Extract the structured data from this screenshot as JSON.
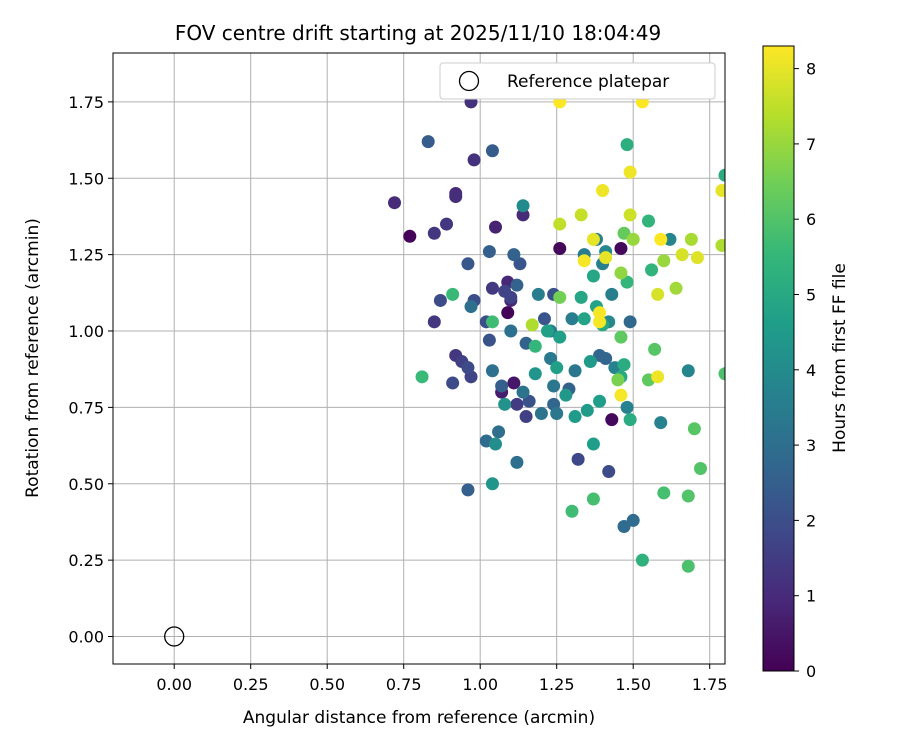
{
  "chart_data": {
    "type": "scatter",
    "title": "FOV centre drift starting at 2025/11/10 18:04:49",
    "xlabel": "Angular distance from reference (arcmin)",
    "ylabel": "Rotation from reference (arcmin)",
    "xlim": [
      -0.2,
      1.8
    ],
    "ylim": [
      -0.09,
      1.91
    ],
    "xticks": [
      0.0,
      0.25,
      0.5,
      0.75,
      1.0,
      1.25,
      1.5,
      1.75
    ],
    "yticks": [
      0.0,
      0.25,
      0.5,
      0.75,
      1.0,
      1.25,
      1.5,
      1.75
    ],
    "xtick_labels": [
      "0.00",
      "0.25",
      "0.50",
      "0.75",
      "1.00",
      "1.25",
      "1.50",
      "1.75"
    ],
    "ytick_labels": [
      "0.00",
      "0.25",
      "0.50",
      "0.75",
      "1.00",
      "1.25",
      "1.50",
      "1.75"
    ],
    "grid": true,
    "legend": {
      "position": "top-right",
      "entries": [
        {
          "label": "Reference platepar",
          "marker": "open-circle"
        }
      ]
    },
    "reference_point": {
      "x": 0.0,
      "y": 0.0
    },
    "colorbar": {
      "label": "Hours from first FF file",
      "colormap": "viridis",
      "range": [
        0,
        8.3
      ],
      "ticks": [
        0,
        1,
        2,
        3,
        4,
        5,
        6,
        7,
        8
      ],
      "tick_labels": [
        "0",
        "1",
        "2",
        "3",
        "4",
        "5",
        "6",
        "7",
        "8"
      ]
    },
    "colormap_stops": [
      "#440154",
      "#482878",
      "#3e4989",
      "#31688e",
      "#26828e",
      "#1f9e89",
      "#35b779",
      "#6ece58",
      "#b5de2b",
      "#fde725"
    ],
    "points": [
      [
        0.77,
        1.31,
        0.1
      ],
      [
        1.09,
        1.06,
        0.1
      ],
      [
        1.26,
        1.27,
        0.2
      ],
      [
        1.46,
        1.27,
        0.2
      ],
      [
        1.43,
        0.71,
        0.2
      ],
      [
        1.11,
        0.83,
        0.5
      ],
      [
        1.07,
        0.8,
        0.6
      ],
      [
        1.05,
        1.34,
        0.8
      ],
      [
        1.1,
        1.1,
        0.9
      ],
      [
        1.09,
        1.16,
        0.9
      ],
      [
        1.14,
        1.38,
        1.0
      ],
      [
        0.72,
        1.42,
        1.0
      ],
      [
        0.92,
        1.45,
        1.0
      ],
      [
        0.92,
        1.44,
        1.1
      ],
      [
        0.97,
        1.75,
        1.2
      ],
      [
        0.98,
        1.56,
        1.2
      ],
      [
        0.85,
        1.32,
        1.3
      ],
      [
        0.89,
        1.35,
        1.3
      ],
      [
        0.85,
        1.03,
        1.3
      ],
      [
        0.92,
        0.92,
        1.3
      ],
      [
        1.04,
        1.14,
        1.4
      ],
      [
        1.12,
        0.76,
        1.5
      ],
      [
        1.15,
        0.72,
        1.6
      ],
      [
        0.94,
        0.9,
        1.6
      ],
      [
        0.97,
        0.85,
        1.7
      ],
      [
        1.08,
        1.13,
        1.7
      ],
      [
        1.1,
        1.11,
        1.7
      ],
      [
        1.32,
        0.58,
        1.8
      ],
      [
        1.42,
        0.54,
        1.9
      ],
      [
        0.87,
        1.1,
        1.9
      ],
      [
        0.91,
        0.83,
        1.9
      ],
      [
        0.96,
        0.88,
        1.9
      ],
      [
        0.98,
        1.1,
        2.0
      ],
      [
        1.02,
        1.03,
        2.0
      ],
      [
        1.03,
        0.97,
        2.1
      ],
      [
        1.16,
        0.77,
        2.1
      ],
      [
        1.24,
        1.12,
        2.1
      ],
      [
        1.21,
        1.04,
        2.2
      ],
      [
        1.13,
        1.22,
        2.2
      ],
      [
        0.96,
        1.22,
        2.3
      ],
      [
        0.83,
        1.62,
        2.4
      ],
      [
        1.04,
        1.59,
        2.4
      ],
      [
        0.96,
        0.48,
        2.5
      ],
      [
        1.03,
        1.26,
        2.5
      ],
      [
        1.07,
        0.82,
        2.5
      ],
      [
        1.11,
        1.25,
        2.6
      ],
      [
        1.12,
        1.15,
        2.6
      ],
      [
        1.15,
        0.96,
        2.6
      ],
      [
        1.29,
        0.81,
        2.6
      ],
      [
        1.24,
        0.76,
        2.7
      ],
      [
        1.39,
        0.92,
        2.7
      ],
      [
        1.41,
        0.91,
        2.7
      ],
      [
        1.49,
        1.03,
        2.8
      ],
      [
        1.5,
        0.38,
        2.9
      ],
      [
        1.47,
        0.36,
        2.9
      ],
      [
        1.02,
        0.64,
        2.9
      ],
      [
        1.06,
        0.67,
        3.0
      ],
      [
        1.12,
        0.57,
        3.0
      ],
      [
        0.97,
        1.08,
        3.0
      ],
      [
        1.04,
        0.87,
        3.1
      ],
      [
        1.1,
        1.0,
        3.1
      ],
      [
        1.14,
        0.8,
        3.2
      ],
      [
        1.2,
        0.73,
        3.2
      ],
      [
        1.25,
        0.73,
        3.3
      ],
      [
        1.24,
        0.82,
        3.3
      ],
      [
        1.31,
        0.87,
        3.3
      ],
      [
        1.23,
        0.91,
        3.4
      ],
      [
        1.23,
        1.0,
        3.4
      ],
      [
        1.19,
        1.12,
        3.5
      ],
      [
        1.3,
        1.04,
        3.5
      ],
      [
        1.34,
        1.25,
        3.5
      ],
      [
        1.38,
        1.3,
        3.6
      ],
      [
        1.4,
        1.22,
        3.6
      ],
      [
        1.43,
        1.12,
        3.6
      ],
      [
        1.44,
        0.88,
        3.7
      ],
      [
        1.48,
        0.75,
        3.7
      ],
      [
        1.59,
        0.7,
        3.7
      ],
      [
        1.62,
        1.3,
        3.8
      ],
      [
        1.68,
        0.87,
        3.8
      ],
      [
        1.42,
        1.03,
        3.9
      ],
      [
        1.41,
        1.26,
        3.9
      ],
      [
        1.14,
        1.41,
        4.0
      ],
      [
        1.05,
        0.63,
        4.1
      ],
      [
        1.08,
        0.76,
        4.2
      ],
      [
        1.04,
        0.5,
        4.3
      ],
      [
        1.18,
        0.86,
        4.3
      ],
      [
        1.28,
        0.79,
        4.4
      ],
      [
        1.31,
        0.72,
        4.5
      ],
      [
        1.35,
        0.74,
        4.5
      ],
      [
        1.36,
        0.9,
        4.5
      ],
      [
        1.37,
        0.63,
        4.6
      ],
      [
        1.39,
        0.77,
        4.6
      ],
      [
        1.25,
        0.88,
        4.7
      ],
      [
        1.26,
        0.98,
        4.7
      ],
      [
        1.22,
        1.0,
        4.7
      ],
      [
        1.34,
        1.04,
        4.8
      ],
      [
        1.38,
        1.08,
        4.8
      ],
      [
        1.37,
        1.18,
        4.9
      ],
      [
        1.33,
        1.11,
        4.9
      ],
      [
        1.4,
        1.02,
        5.0
      ],
      [
        1.46,
        0.85,
        5.0
      ],
      [
        1.47,
        0.89,
        5.1
      ],
      [
        1.49,
        0.71,
        5.1
      ],
      [
        1.48,
        1.61,
        5.2
      ],
      [
        1.53,
        0.25,
        5.3
      ],
      [
        1.55,
        1.36,
        5.4
      ],
      [
        1.56,
        1.2,
        5.4
      ],
      [
        1.48,
        1.16,
        5.5
      ],
      [
        1.18,
        0.95,
        5.5
      ],
      [
        0.91,
        1.12,
        5.6
      ],
      [
        0.81,
        0.85,
        5.6
      ],
      [
        1.04,
        1.03,
        5.7
      ],
      [
        1.3,
        0.41,
        5.7
      ],
      [
        1.37,
        0.45,
        5.8
      ],
      [
        1.6,
        0.47,
        5.8
      ],
      [
        1.68,
        0.23,
        5.9
      ],
      [
        1.68,
        0.46,
        6.0
      ],
      [
        1.72,
        0.55,
        6.0
      ],
      [
        1.7,
        0.68,
        6.1
      ],
      [
        1.57,
        0.94,
        6.1
      ],
      [
        1.55,
        0.84,
        6.2
      ],
      [
        1.46,
        0.98,
        6.2
      ],
      [
        1.47,
        1.32,
        6.3
      ],
      [
        1.26,
        1.11,
        6.5
      ],
      [
        1.45,
        0.84,
        6.6
      ],
      [
        1.46,
        1.19,
        6.9
      ],
      [
        1.5,
        1.3,
        7.0
      ],
      [
        1.6,
        1.23,
        7.0
      ],
      [
        1.64,
        1.14,
        7.1
      ],
      [
        1.69,
        1.3,
        7.2
      ],
      [
        1.79,
        1.28,
        7.3
      ],
      [
        1.17,
        1.02,
        7.3
      ],
      [
        1.26,
        1.35,
        7.5
      ],
      [
        1.33,
        1.38,
        7.6
      ],
      [
        1.49,
        1.38,
        7.7
      ],
      [
        1.66,
        1.25,
        7.8
      ],
      [
        1.58,
        1.12,
        7.8
      ],
      [
        1.71,
        1.24,
        7.9
      ],
      [
        1.79,
        1.46,
        8.0
      ],
      [
        1.37,
        1.3,
        8.0
      ],
      [
        1.41,
        1.24,
        8.0
      ],
      [
        1.4,
        1.46,
        8.1
      ],
      [
        1.49,
        1.52,
        8.1
      ],
      [
        1.58,
        0.85,
        8.1
      ],
      [
        1.46,
        0.79,
        8.2
      ],
      [
        1.39,
        1.03,
        8.2
      ],
      [
        1.39,
        1.06,
        8.2
      ],
      [
        1.34,
        1.23,
        8.2
      ],
      [
        1.26,
        1.75,
        8.3
      ],
      [
        1.53,
        1.75,
        8.3
      ],
      [
        1.59,
        1.3,
        8.3
      ],
      [
        1.8,
        1.51,
        5.1
      ],
      [
        1.8,
        0.86,
        5.9
      ]
    ]
  }
}
